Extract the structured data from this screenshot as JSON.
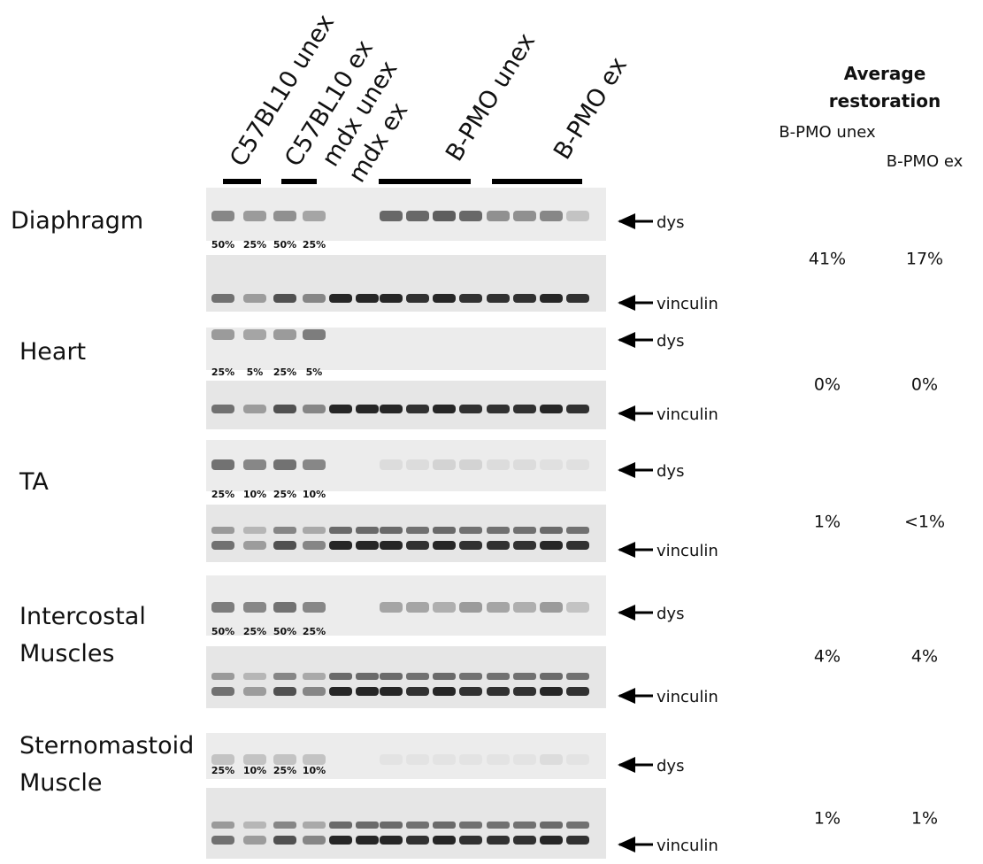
{
  "figure": {
    "lane_labels": [
      "C57BL10 unex",
      "C57BL10 ex",
      "mdx unex",
      "mdx ex",
      "B-PMO unex",
      "B-PMO ex"
    ],
    "restoration_header": {
      "title": "Average restoration",
      "columns": [
        "B-PMO unex",
        "B-PMO ex"
      ]
    },
    "tissues": [
      {
        "name": "Diaphragm",
        "dilutions": [
          "50%",
          "25%",
          "50%",
          "25%"
        ],
        "blots": [
          "dys",
          "vinculin"
        ],
        "restoration": [
          "41%",
          "17%"
        ]
      },
      {
        "name": "Heart",
        "dilutions": [
          "25%",
          "5%",
          "25%",
          "5%"
        ],
        "blots": [
          "dys",
          "vinculin"
        ],
        "restoration": [
          "0%",
          "0%"
        ]
      },
      {
        "name": "TA",
        "dilutions": [
          "25%",
          "10%",
          "25%",
          "10%"
        ],
        "blots": [
          "dys",
          "vinculin"
        ],
        "restoration": [
          "1%",
          "<1%"
        ]
      },
      {
        "name": "Intercostal Muscles",
        "dilutions": [
          "50%",
          "25%",
          "50%",
          "25%"
        ],
        "blots": [
          "dys",
          "vinculin"
        ],
        "restoration": [
          "4%",
          "4%"
        ]
      },
      {
        "name": "Sternomastoid Muscle",
        "dilutions": [
          "25%",
          "10%",
          "25%",
          "10%"
        ],
        "blots": [
          "dys",
          "vinculin"
        ],
        "restoration": [
          "1%",
          "1%"
        ]
      }
    ]
  }
}
